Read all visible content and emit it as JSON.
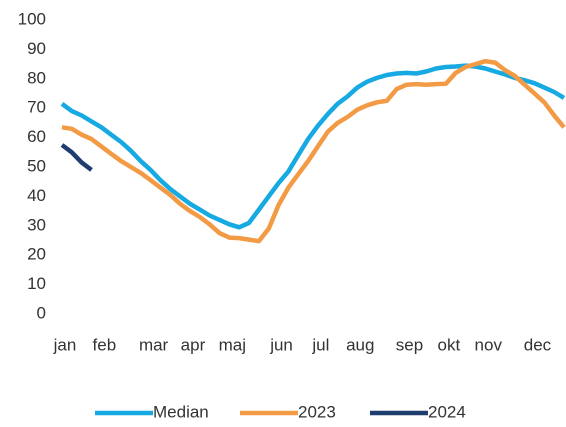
{
  "chart_data": {
    "type": "line",
    "categories": [
      "jan",
      null,
      null,
      null,
      "feb",
      null,
      null,
      null,
      null,
      "mar",
      null,
      null,
      null,
      "apr",
      null,
      null,
      null,
      "maj",
      null,
      null,
      null,
      null,
      "jun",
      null,
      null,
      null,
      "jul",
      null,
      null,
      null,
      "aug",
      null,
      null,
      null,
      null,
      "sep",
      null,
      null,
      null,
      "okt",
      null,
      null,
      null,
      "nov",
      null,
      null,
      null,
      null,
      "dec",
      null,
      null,
      null
    ],
    "series": [
      {
        "name": "Median",
        "color": "#17a9e1",
        "values": [
          71.5,
          69,
          67.5,
          65.5,
          63.5,
          61,
          58.5,
          55.5,
          52,
          49,
          45.5,
          42.5,
          40,
          37.5,
          35.5,
          33.5,
          32,
          30.5,
          29.5,
          31,
          35.5,
          40,
          44.5,
          48.5,
          54,
          59.5,
          64,
          68,
          71.5,
          74,
          77,
          79,
          80.3,
          81.3,
          81.8,
          82,
          81.8,
          82.5,
          83.5,
          84,
          84.2,
          84.5,
          84.2,
          83.5,
          82.5,
          81.5,
          80.3,
          79.5,
          78.5,
          77,
          75.5,
          73.5
        ]
      },
      {
        "name": "2023",
        "color": "#f39a45",
        "values": [
          63.5,
          63,
          61,
          59.5,
          57,
          54.5,
          52,
          50,
          48,
          45.5,
          43,
          40.5,
          37.5,
          35,
          33,
          30.5,
          27.5,
          26,
          25.8,
          25.3,
          24.8,
          29,
          37,
          43,
          47.5,
          52,
          57,
          62,
          65,
          67,
          69.5,
          71,
          72,
          72.5,
          76.5,
          78,
          78.2,
          78,
          78.2,
          78.3,
          82,
          84,
          85,
          86,
          85.5,
          83,
          81,
          78,
          75,
          72,
          67.5,
          63.5
        ]
      },
      {
        "name": "2024",
        "color": "#1f3d6e",
        "values": [
          57.5,
          55,
          51.5,
          49,
          null,
          null,
          null,
          null,
          null,
          null,
          null,
          null,
          null,
          null,
          null,
          null,
          null,
          null,
          null,
          null,
          null,
          null,
          null,
          null,
          null,
          null,
          null,
          null,
          null,
          null,
          null,
          null,
          null,
          null,
          null,
          null,
          null,
          null,
          null,
          null,
          null,
          null,
          null,
          null,
          null,
          null,
          null,
          null,
          null,
          null,
          null,
          null
        ]
      }
    ],
    "ylim": [
      0,
      100
    ],
    "yticks": [
      0,
      10,
      20,
      30,
      40,
      50,
      60,
      70,
      80,
      90,
      100
    ],
    "grid": false,
    "legend": "bottom"
  }
}
